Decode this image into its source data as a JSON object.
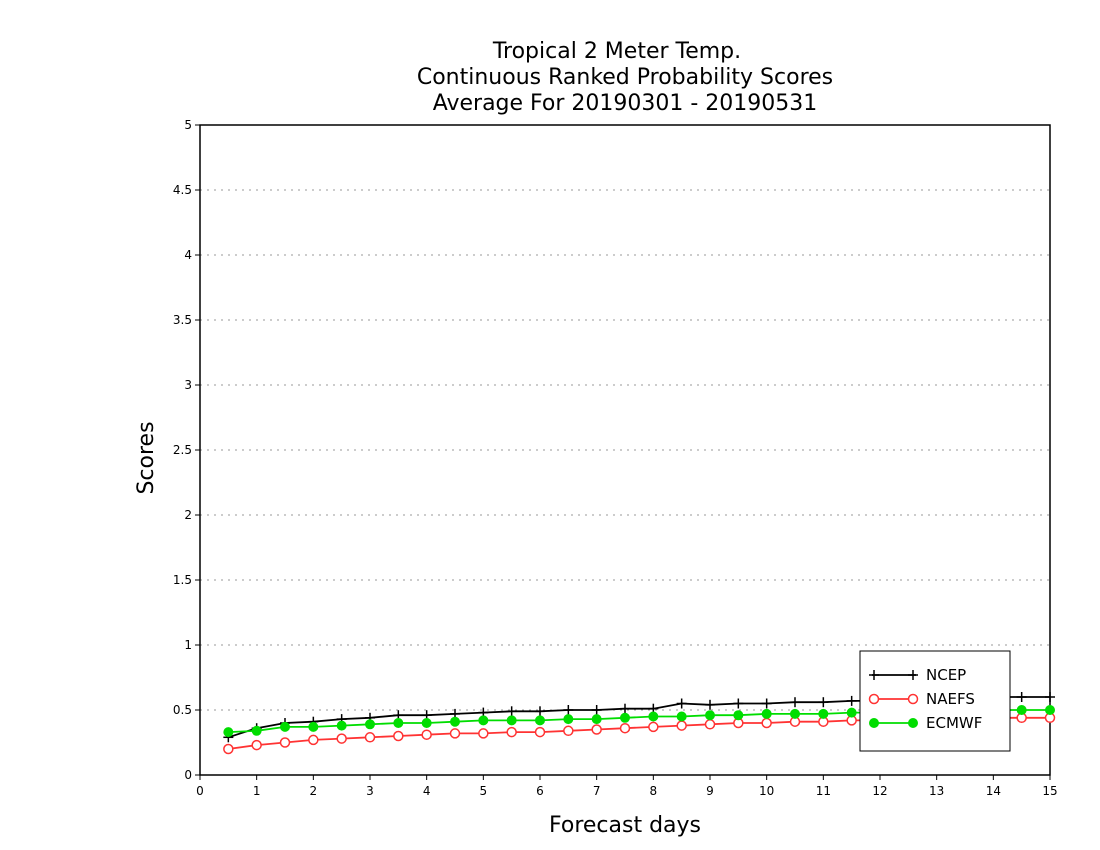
{
  "chart_data": {
    "type": "line",
    "title_lines": [
      "Tropical 2 Meter Temp.",
      "Continuous Ranked Probability Scores",
      "Average For 20190301 - 20190531"
    ],
    "xlabel": "Forecast days",
    "ylabel": "Scores",
    "xlim": [
      0,
      15
    ],
    "ylim": [
      0,
      5
    ],
    "xticks": [
      "0",
      "1",
      "2",
      "3",
      "4",
      "5",
      "6",
      "7",
      "8",
      "9",
      "10",
      "11",
      "12",
      "13",
      "14",
      "15"
    ],
    "yticks": [
      "0",
      "0.5",
      "1",
      "1.5",
      "2",
      "2.5",
      "3",
      "3.5",
      "4",
      "4.5",
      "5"
    ],
    "grid": "horizontal dotted",
    "legend_position": "bottom-right",
    "x": [
      0.5,
      1,
      1.5,
      2,
      2.5,
      3,
      3.5,
      4,
      4.5,
      5,
      5.5,
      6,
      6.5,
      7,
      7.5,
      8,
      8.5,
      9,
      9.5,
      10,
      10.5,
      11,
      11.5,
      12,
      12.5,
      13,
      13.5,
      14,
      14.5,
      15
    ],
    "series": [
      {
        "name": "NCEP",
        "color": "#000000",
        "marker": "plus",
        "values": [
          0.29,
          0.36,
          0.4,
          0.41,
          0.43,
          0.44,
          0.46,
          0.46,
          0.47,
          0.48,
          0.49,
          0.49,
          0.5,
          0.5,
          0.51,
          0.51,
          0.55,
          0.54,
          0.55,
          0.55,
          0.56,
          0.56,
          0.57,
          0.57,
          0.58,
          0.58,
          0.59,
          0.6,
          0.6,
          0.6
        ]
      },
      {
        "name": "NAEFS",
        "color": "#ff3333",
        "marker": "open-circle",
        "values": [
          0.2,
          0.23,
          0.25,
          0.27,
          0.28,
          0.29,
          0.3,
          0.31,
          0.32,
          0.32,
          0.33,
          0.33,
          0.34,
          0.35,
          0.36,
          0.37,
          0.38,
          0.39,
          0.4,
          0.4,
          0.41,
          0.41,
          0.42,
          0.42,
          0.43,
          0.43,
          0.44,
          0.44,
          0.44,
          0.44
        ]
      },
      {
        "name": "ECMWF",
        "color": "#00dd00",
        "marker": "filled-circle",
        "values": [
          0.33,
          0.34,
          0.37,
          0.37,
          0.38,
          0.39,
          0.4,
          0.4,
          0.41,
          0.42,
          0.42,
          0.42,
          0.43,
          0.43,
          0.44,
          0.45,
          0.45,
          0.46,
          0.46,
          0.47,
          0.47,
          0.47,
          0.48,
          0.48,
          0.48,
          0.49,
          0.49,
          0.5,
          0.5,
          0.5
        ]
      }
    ]
  }
}
